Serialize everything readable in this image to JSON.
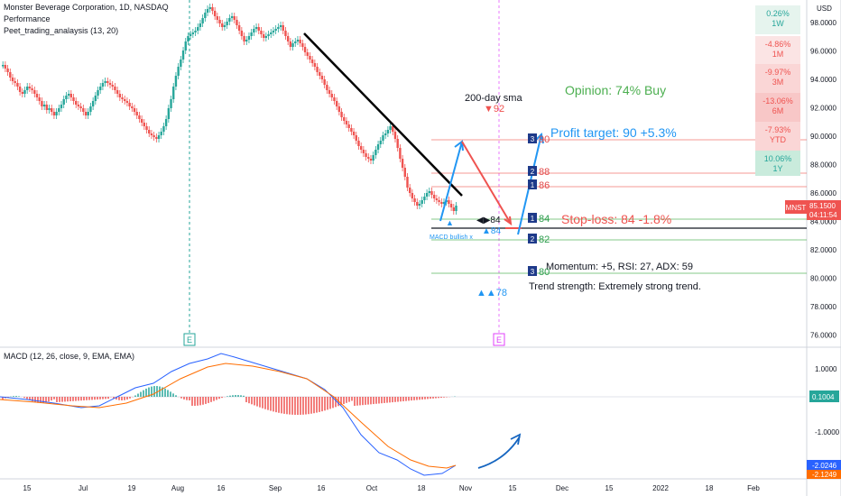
{
  "header": {
    "title": "Monster Beverage Corporation, 1D, NASDAQ",
    "indicator_1": "Performance",
    "indicator_2": "Peet_trading_analaysis (13, 20)"
  },
  "currency": "USD",
  "price_axis": [
    "98.0000",
    "96.0000",
    "94.0000",
    "92.0000",
    "90.0000",
    "88.0000",
    "86.0000",
    "84.0000",
    "82.0000",
    "80.0000",
    "78.0000",
    "76.0000"
  ],
  "current_price": {
    "symbol": "MNST",
    "price": "85.1500",
    "countdown": "04:11:54"
  },
  "performance": [
    {
      "value": "0.26%",
      "period": "1W",
      "color": "#e6f4ee"
    },
    {
      "value": "-4.86%",
      "period": "1M",
      "color": "#fbe4e4"
    },
    {
      "value": "-9.97%",
      "period": "3M",
      "color": "#fad6d6"
    },
    {
      "value": "-13.06%",
      "period": "6M",
      "color": "#f8c7c7"
    },
    {
      "value": "-7.93%",
      "period": "YTD",
      "color": "#fad6d6"
    },
    {
      "value": "10.06%",
      "period": "1Y",
      "color": "#c9ebdc"
    }
  ],
  "annotations": {
    "opinion": "Opinion: 74% Buy",
    "sma_label": "200-day sma",
    "sma_value": "▼92",
    "profit_target": "Profit target: 90 +5.3%",
    "stop_loss": "Stop-loss: 84 -1.8%",
    "momentum": "Momentum: +5, RSI: 27, ADX: 59",
    "trend": "Trend strength: Extremely strong trend.",
    "support_78": "▲▲78",
    "support_84": "▲84",
    "marker_84": "◀▶84",
    "macd_bullish": "MACD bullish x",
    "earnings": "E"
  },
  "levels": [
    {
      "box": "3",
      "value": "90",
      "color": "#e24a4a"
    },
    {
      "box": "2",
      "value": "88",
      "color": "#e24a4a"
    },
    {
      "box": "1",
      "value": "86",
      "color": "#e24a4a"
    },
    {
      "box": "1",
      "value": "84",
      "color": "#2e9e4f"
    },
    {
      "box": "2",
      "value": "82",
      "color": "#2e9e4f"
    },
    {
      "box": "3",
      "value": "80",
      "color": "#2e9e4f"
    }
  ],
  "macd": {
    "title": "MACD (12, 26, close, 9, EMA, EMA)",
    "axis": [
      "1.0000",
      "0.0000",
      "-1.0000"
    ],
    "hist_value": "0.1004",
    "macd_value": "-2.0246",
    "signal_value": "-2.1249"
  },
  "time_axis": [
    "15",
    "Jul",
    "19",
    "Aug",
    "16",
    "Sep",
    "16",
    "Oct",
    "18",
    "Nov",
    "15",
    "Dec",
    "15",
    "2022",
    "18",
    "Feb"
  ],
  "colors": {
    "up": "#26a69a",
    "down": "#ef5350",
    "macd": "#2962ff",
    "signal": "#ff6d00",
    "projection_up": "#2196f3",
    "projection_down": "#ef5350"
  }
}
